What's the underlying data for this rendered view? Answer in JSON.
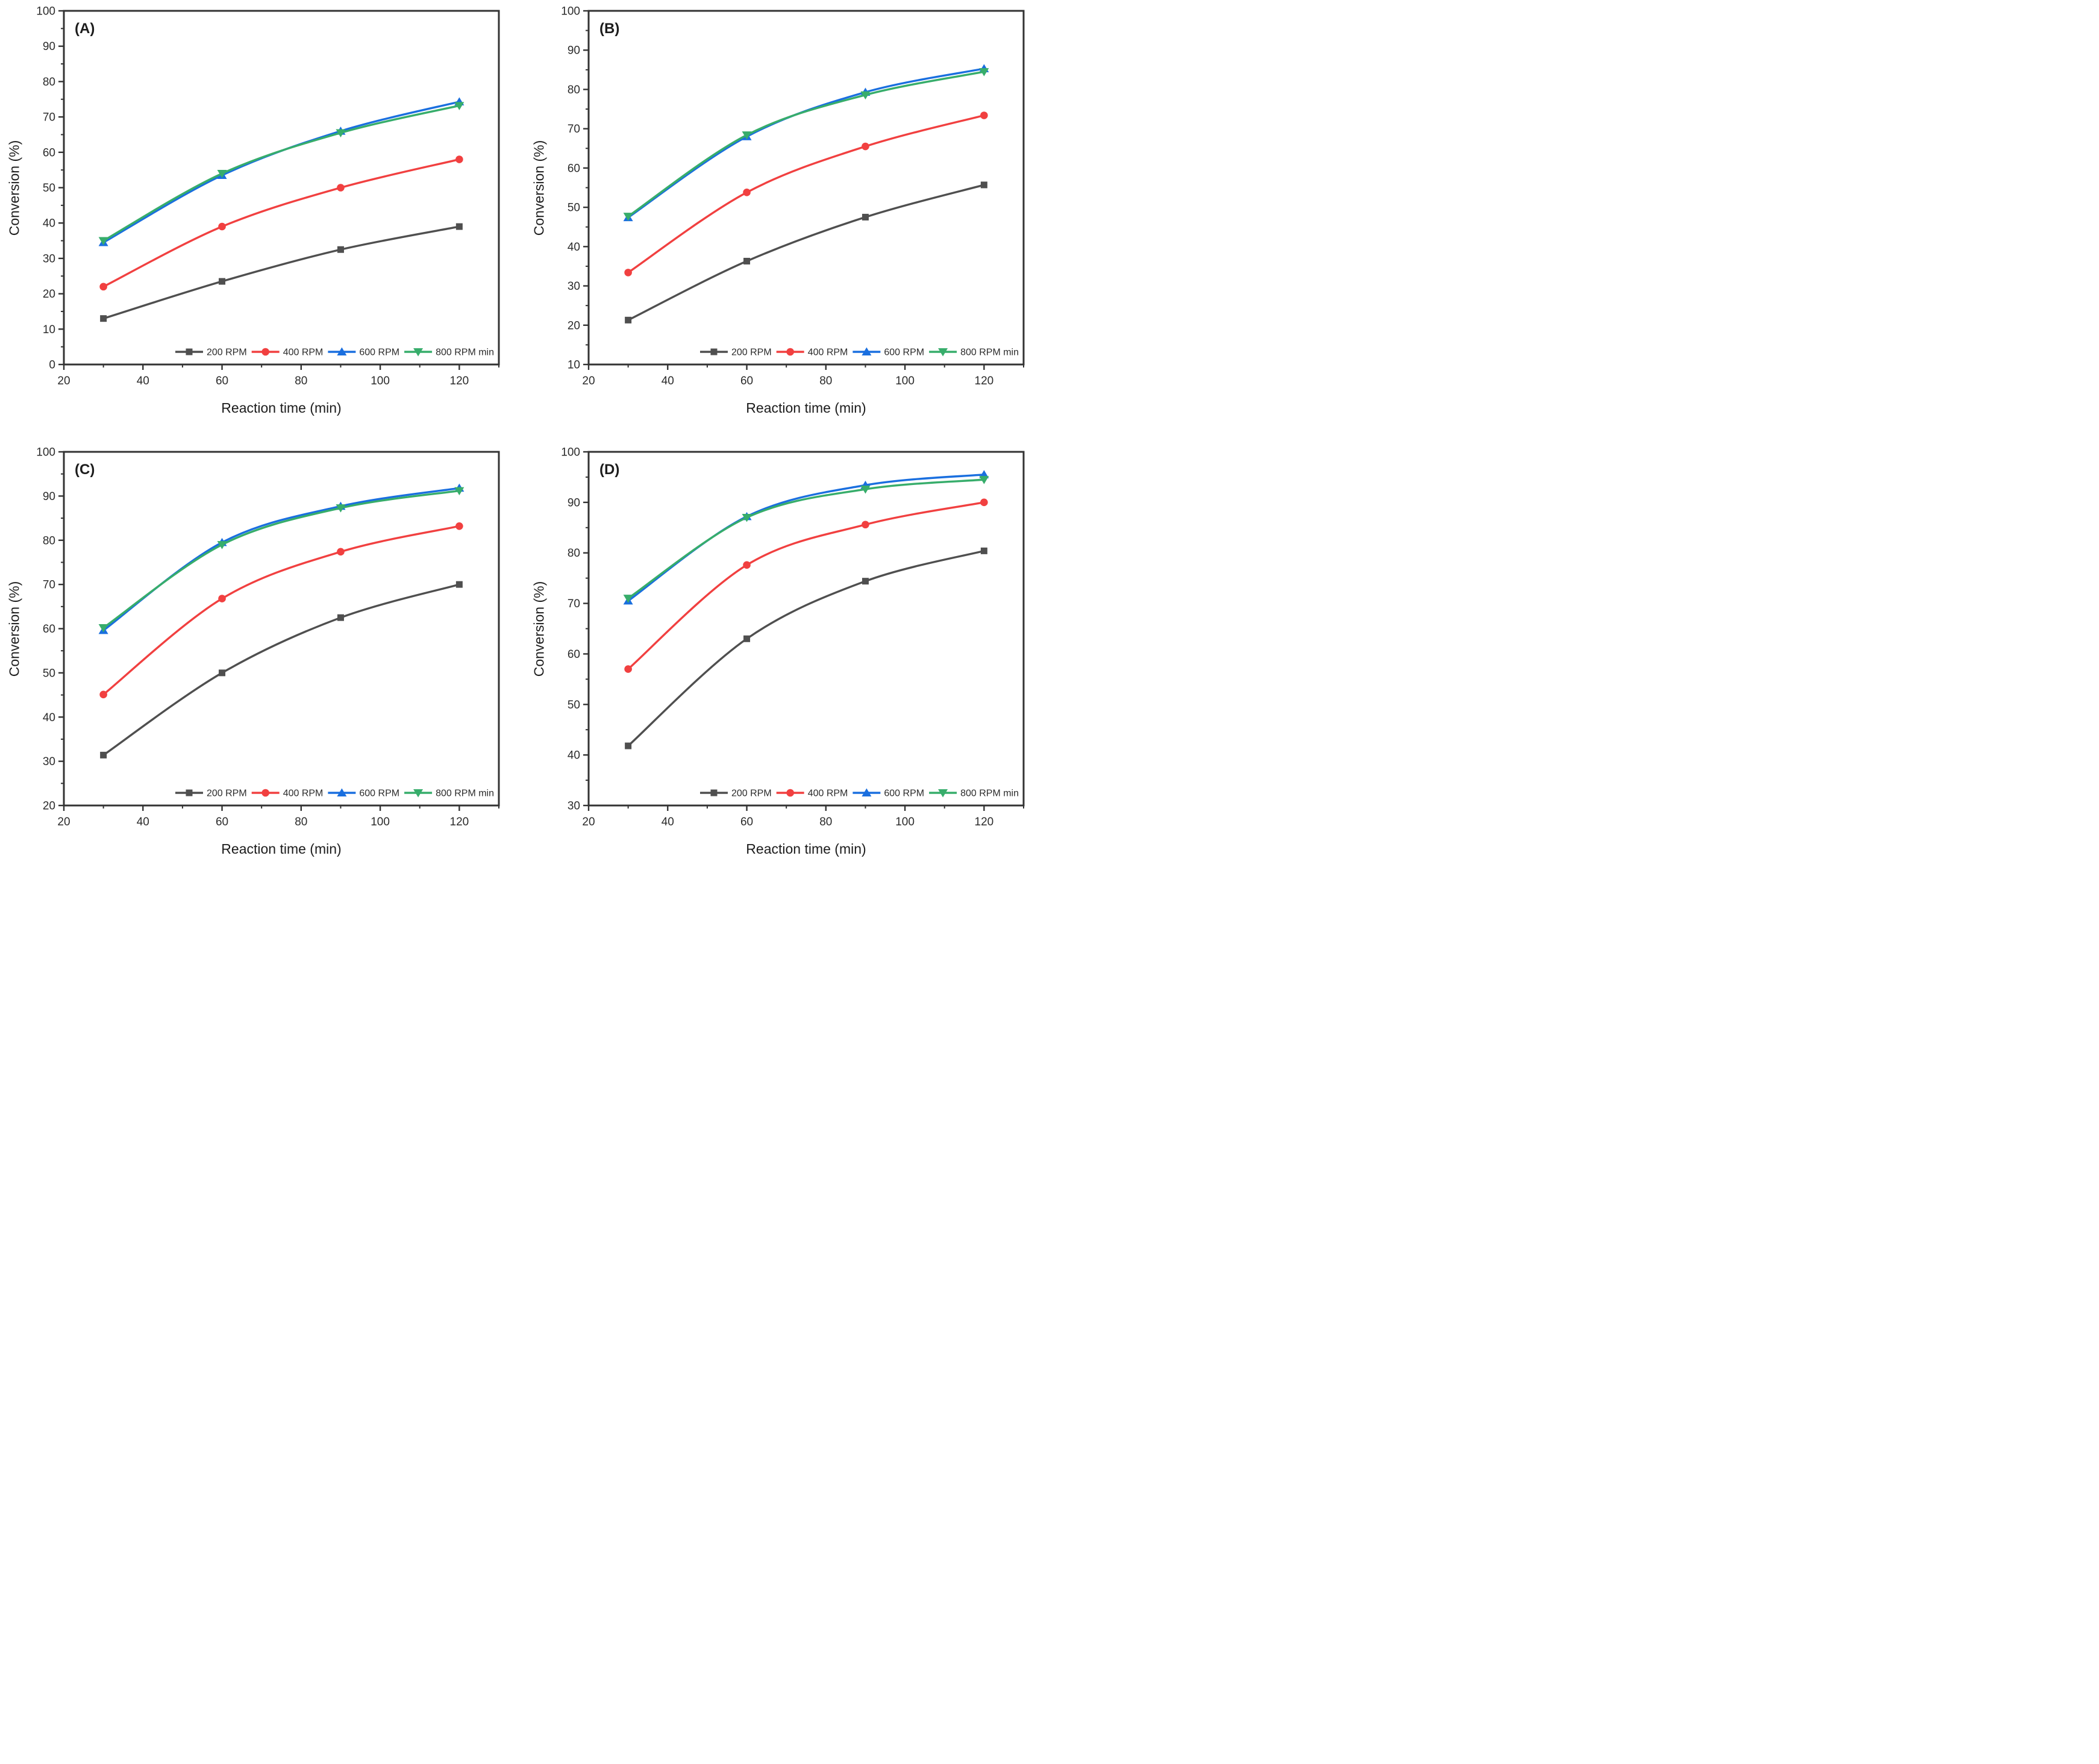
{
  "figure": {
    "xlabel": "Reaction time (min)",
    "ylabel": "Conversion (%)",
    "x_major_ticks": [
      20,
      40,
      60,
      80,
      100,
      120
    ],
    "x_minor_ticks": [
      30,
      50,
      70,
      90,
      110,
      130
    ],
    "x_range": [
      20,
      130
    ],
    "axis_color": "#333333",
    "text_color": "#2b2b2b",
    "legend": [
      {
        "name": "200 RPM",
        "color": "#4f4f4f",
        "marker": "square"
      },
      {
        "name": "400 RPM",
        "color": "#f14040",
        "marker": "circle"
      },
      {
        "name": "600 RPM",
        "color": "#1a6fdf",
        "marker": "triangle-up"
      },
      {
        "name": "800 RPM min",
        "color": "#37ad6b",
        "marker": "triangle-down"
      }
    ]
  },
  "chart_data": [
    {
      "type": "line",
      "panel": "(A)",
      "xlabel": "Reaction time (min)",
      "ylabel": "Conversion (%)",
      "x": [
        30,
        60,
        90,
        120
      ],
      "xlim": [
        20,
        130
      ],
      "ylim": [
        0,
        100
      ],
      "ytick_step": 10,
      "grid": false,
      "legend_position": "inside-bottom-right",
      "series": [
        {
          "name": "200 RPM",
          "values": [
            13.0,
            23.5,
            32.5,
            39.0
          ]
        },
        {
          "name": "400 RPM",
          "values": [
            22.0,
            39.0,
            50.0,
            58.0
          ]
        },
        {
          "name": "600 RPM",
          "values": [
            34.5,
            53.5,
            66.0,
            74.3
          ]
        },
        {
          "name": "800 RPM min",
          "values": [
            35.0,
            54.0,
            65.5,
            73.2
          ]
        }
      ]
    },
    {
      "type": "line",
      "panel": "(B)",
      "xlabel": "Reaction time (min)",
      "ylabel": "Conversion (%)",
      "x": [
        30,
        60,
        90,
        120
      ],
      "xlim": [
        20,
        130
      ],
      "ylim": [
        10,
        100
      ],
      "ytick_step": 10,
      "grid": false,
      "legend_position": "inside-bottom-right",
      "series": [
        {
          "name": "200 RPM",
          "values": [
            21.3,
            36.3,
            47.5,
            55.7
          ]
        },
        {
          "name": "400 RPM",
          "values": [
            33.4,
            53.8,
            65.5,
            73.4
          ]
        },
        {
          "name": "600 RPM",
          "values": [
            47.4,
            68.0,
            79.3,
            85.3
          ]
        },
        {
          "name": "800 RPM min",
          "values": [
            47.7,
            68.4,
            78.6,
            84.5
          ]
        }
      ]
    },
    {
      "type": "line",
      "panel": "(C)",
      "xlabel": "Reaction time (min)",
      "ylabel": "Conversion (%)",
      "x": [
        30,
        60,
        90,
        120
      ],
      "xlim": [
        20,
        130
      ],
      "ylim": [
        20,
        100
      ],
      "ytick_step": 10,
      "grid": false,
      "legend_position": "inside-bottom-right",
      "series": [
        {
          "name": "200 RPM",
          "values": [
            31.4,
            50.0,
            62.5,
            70.0
          ]
        },
        {
          "name": "400 RPM",
          "values": [
            45.1,
            66.8,
            77.4,
            83.2
          ]
        },
        {
          "name": "600 RPM",
          "values": [
            59.6,
            79.5,
            87.7,
            91.8
          ]
        },
        {
          "name": "800 RPM min",
          "values": [
            60.2,
            79.0,
            87.3,
            91.2
          ]
        }
      ]
    },
    {
      "type": "line",
      "panel": "(D)",
      "xlabel": "Reaction time (min)",
      "ylabel": "Conversion (%)",
      "x": [
        30,
        60,
        90,
        120
      ],
      "xlim": [
        20,
        130
      ],
      "ylim": [
        30,
        100
      ],
      "ytick_step": 10,
      "grid": false,
      "legend_position": "inside-bottom-right",
      "series": [
        {
          "name": "200 RPM",
          "values": [
            41.8,
            63.0,
            74.4,
            80.4
          ]
        },
        {
          "name": "400 RPM",
          "values": [
            57.0,
            77.6,
            85.6,
            90.0
          ]
        },
        {
          "name": "600 RPM",
          "values": [
            70.5,
            87.2,
            93.4,
            95.5
          ]
        },
        {
          "name": "800 RPM min",
          "values": [
            71.0,
            87.0,
            92.6,
            94.5
          ]
        }
      ]
    }
  ]
}
